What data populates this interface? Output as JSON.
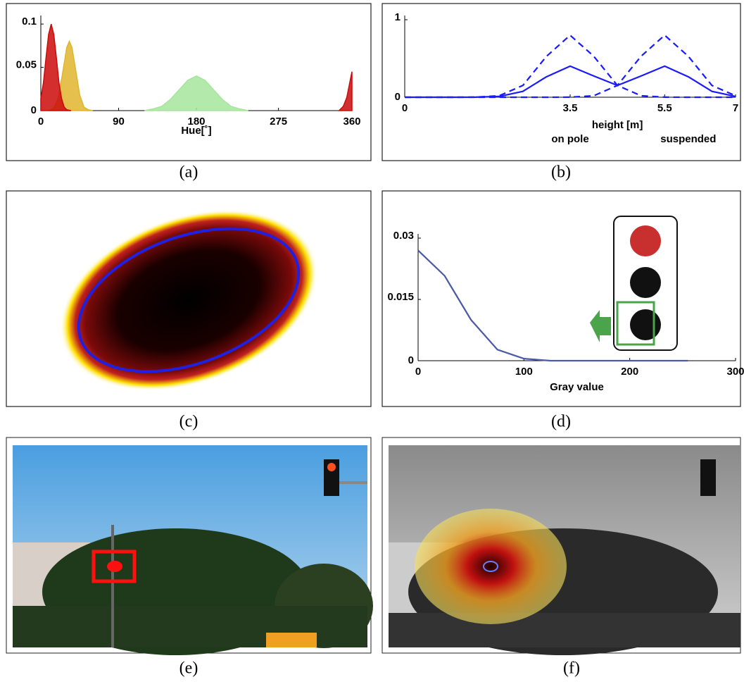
{
  "captions": [
    "(a)",
    "(b)",
    "(c)",
    "(d)",
    "(e)",
    "(f)"
  ],
  "chart_data": [
    {
      "type": "area",
      "xlabel": "Hue[˚]",
      "xlim": [
        0,
        360
      ],
      "xticks": [
        0,
        90,
        180,
        275,
        360
      ],
      "ylim": [
        0,
        0.105
      ],
      "yticks": [
        0,
        0.05,
        0.1
      ],
      "series": [
        {
          "color": "#e0b52e",
          "x": [
            10,
            15,
            20,
            25,
            30,
            33,
            36,
            40,
            45,
            50,
            55,
            60
          ],
          "values": [
            0,
            0.003,
            0.014,
            0.042,
            0.073,
            0.08,
            0.073,
            0.049,
            0.018,
            0.004,
            0.001,
            0
          ]
        },
        {
          "color": "#cc0a0a",
          "x": [
            0,
            3,
            6,
            9,
            12,
            15,
            18,
            21,
            24,
            27,
            30,
            35
          ],
          "values": [
            0.014,
            0.032,
            0.061,
            0.088,
            0.1,
            0.088,
            0.061,
            0.032,
            0.014,
            0.004,
            0.001,
            0
          ]
        },
        {
          "color": "#a6e59c",
          "x": [
            120,
            130,
            140,
            150,
            160,
            170,
            180,
            190,
            200,
            210,
            220,
            230,
            240
          ],
          "values": [
            0,
            0.002,
            0.005,
            0.013,
            0.024,
            0.035,
            0.04,
            0.035,
            0.024,
            0.013,
            0.005,
            0.002,
            0
          ]
        },
        {
          "color": "#cc0a0a",
          "x": [
            345,
            350,
            354,
            357,
            360
          ],
          "values": [
            0,
            0.005,
            0.015,
            0.03,
            0.045
          ]
        }
      ]
    },
    {
      "type": "line",
      "xlabel": "height [m]",
      "annotations": [
        "on pole",
        "suspended"
      ],
      "xlim": [
        0,
        7
      ],
      "xticks": [
        0,
        3.5,
        5.5,
        7
      ],
      "ylim": [
        0,
        1
      ],
      "yticks": [
        0,
        1
      ],
      "x": [
        0,
        0.5,
        1,
        1.5,
        2,
        2.5,
        3,
        3.5,
        4,
        4.5,
        5,
        5.5,
        6,
        6.5,
        7
      ],
      "series": [
        {
          "color": "#1a1aff",
          "values": [
            0,
            0,
            0,
            0.001,
            0.01,
            0.076,
            0.264,
            0.401,
            0.274,
            0.152,
            0.274,
            0.401,
            0.264,
            0.076,
            0.01
          ]
        },
        {
          "color": "#1a1aff",
          "dash": true,
          "values": [
            0,
            0,
            0,
            0.001,
            0.019,
            0.152,
            0.528,
            0.8,
            0.528,
            0.152,
            0.019,
            0.001,
            0,
            0,
            0
          ]
        },
        {
          "color": "#1a1aff",
          "dash": true,
          "values": [
            0,
            0,
            0,
            0,
            0,
            0,
            0,
            0.001,
            0.019,
            0.152,
            0.528,
            0.8,
            0.528,
            0.152,
            0.019
          ]
        }
      ]
    },
    {
      "type": "line",
      "xlabel": "Gray value",
      "xlim": [
        0,
        300
      ],
      "xticks": [
        0,
        100,
        200,
        300
      ],
      "ylim": [
        0,
        0.03
      ],
      "yticks": [
        0,
        0.015,
        0.03
      ],
      "x": [
        0,
        25,
        50,
        75,
        100,
        125,
        150,
        200,
        255
      ],
      "series": [
        {
          "color": "#4a5aa8",
          "values": [
            0.027,
            0.0208,
            0.01,
            0.0027,
            0.0005,
            0,
            0,
            0,
            0
          ]
        }
      ]
    }
  ]
}
